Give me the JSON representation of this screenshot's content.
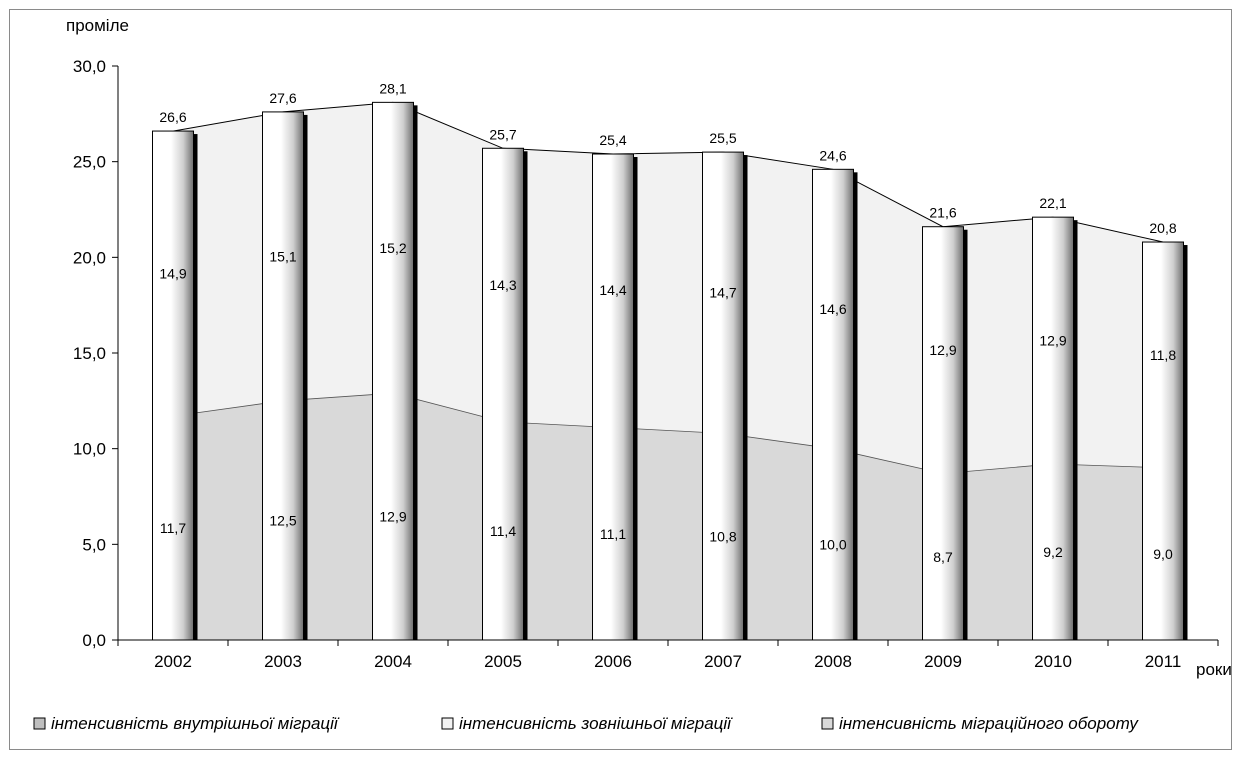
{
  "chart_data": {
    "type": "bar",
    "ylabel": "проміле",
    "xlabel": "роки",
    "ylim": [
      0,
      30
    ],
    "yticks": [
      "0,0",
      "5,0",
      "10,0",
      "15,0",
      "20,0",
      "25,0",
      "30,0"
    ],
    "categories": [
      "2002",
      "2003",
      "2004",
      "2005",
      "2006",
      "2007",
      "2008",
      "2009",
      "2010",
      "2011"
    ],
    "series": [
      {
        "name": "інтенсивність внутрішньої міграції",
        "values": [
          11.7,
          12.5,
          12.9,
          11.4,
          11.1,
          10.8,
          10.0,
          8.7,
          9.2,
          9.0
        ],
        "labels": [
          "11,7",
          "12,5",
          "12,9",
          "11,4",
          "11,1",
          "10,8",
          "10,0",
          "8,7",
          "9,2",
          "9,0"
        ]
      },
      {
        "name": "інтенсивність зовнішньої міграції",
        "values": [
          14.9,
          15.1,
          15.2,
          14.3,
          14.4,
          14.7,
          14.6,
          12.9,
          12.9,
          11.8
        ],
        "labels": [
          "14,9",
          "15,1",
          "15,2",
          "14,3",
          "14,4",
          "14,7",
          "14,6",
          "12,9",
          "12,9",
          "11,8"
        ]
      },
      {
        "name": "інтенсивність міграційного обороту",
        "values": [
          26.6,
          27.6,
          28.1,
          25.7,
          25.4,
          25.5,
          24.6,
          21.6,
          22.1,
          20.8
        ],
        "labels": [
          "26,6",
          "27,6",
          "28,1",
          "25,7",
          "25,4",
          "25,5",
          "24,6",
          "21,6",
          "22,1",
          "20,8"
        ]
      }
    ],
    "legend_position": "bottom",
    "grid": false,
    "colors": {
      "lower_area": "#d9d9d9",
      "upper_area": "#f2f2f2",
      "bar": "#ffffff",
      "line": "#000000"
    }
  }
}
